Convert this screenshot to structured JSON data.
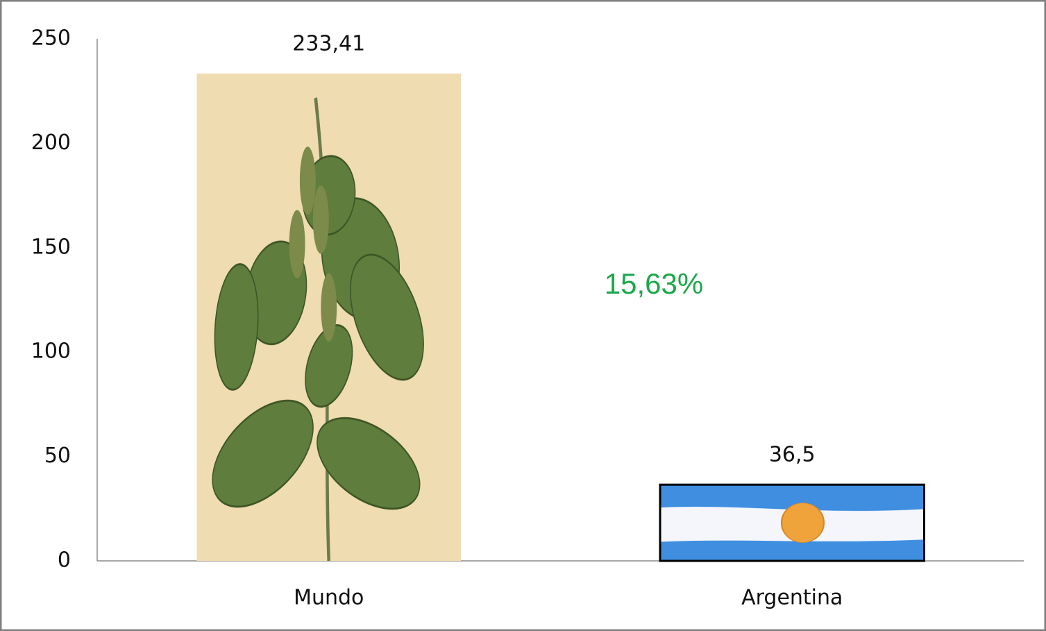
{
  "chart_data": {
    "type": "bar",
    "categories": [
      "Mundo",
      "Argentina"
    ],
    "values": [
      233.41,
      36.5
    ],
    "value_labels": [
      "233,41",
      "36,5"
    ],
    "colors": [
      "#efdcb0",
      "#3f8ee0"
    ],
    "annotation": "15,63%",
    "ylim": [
      0,
      250
    ],
    "yticks": [
      0,
      50,
      100,
      150,
      200,
      250
    ],
    "grid": false
  }
}
